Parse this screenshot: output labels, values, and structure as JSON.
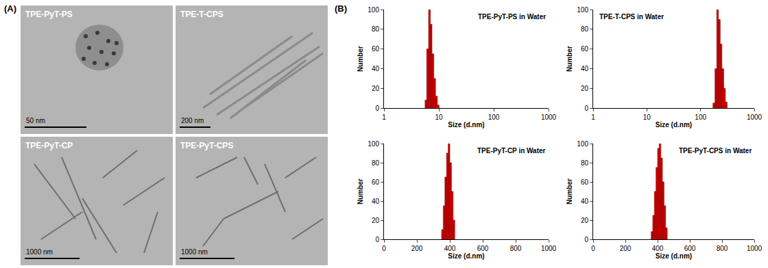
{
  "figure_labels": [
    "(A)",
    "(B)"
  ],
  "images": [
    {
      "label": "TPE-PyT-PS",
      "scale_bar": "50 nm"
    },
    {
      "label": "TPE-T-CPS",
      "scale_bar": "200 nm"
    },
    {
      "label": "TPE-PyT-CP",
      "scale_bar": "1000 nm"
    },
    {
      "label": "TPE-PyT-CPS",
      "scale_bar": "1000 nm"
    }
  ],
  "chart_data": [
    {
      "type": "histogram",
      "title": "TPE-PyT-PS in Water",
      "x_label": "Size (d.nm)",
      "y_label": "Number",
      "log": "x",
      "xlim": [
        1,
        1000
      ],
      "xticks": [
        1,
        10,
        100,
        1000
      ],
      "ylim": [
        0,
        100
      ],
      "yticks": [
        0,
        20,
        40,
        60,
        80,
        100
      ],
      "bins": [
        5.6,
        6.0,
        6.5,
        7.0,
        7.5,
        8.1,
        8.7,
        9.4,
        10.1
      ],
      "counts": [
        8,
        60,
        100,
        85,
        55,
        30,
        12,
        3
      ],
      "color": "#e00000"
    },
    {
      "type": "histogram",
      "title": "TPE-T-CPS in Water",
      "x_label": "Size (d.nm)",
      "y_label": "Number",
      "log": "x",
      "xlim": [
        1,
        1000
      ],
      "xticks": [
        1,
        10,
        100,
        1000
      ],
      "ylim": [
        0,
        100
      ],
      "yticks": [
        0,
        20,
        40,
        60,
        80,
        100
      ],
      "bins": [
        170,
        185,
        200,
        215,
        232,
        250,
        270,
        290,
        312
      ],
      "counts": [
        5,
        40,
        100,
        90,
        65,
        40,
        20,
        6
      ],
      "color": "#e00000"
    },
    {
      "type": "histogram",
      "title": "TPE-PyT-CP in Water",
      "x_label": "Size (d.nm)",
      "y_label": "Number",
      "xlim": [
        0,
        1000
      ],
      "xticks": [
        0,
        200,
        400,
        600,
        800,
        1000
      ],
      "ylim": [
        0,
        100
      ],
      "yticks": [
        0,
        20,
        40,
        60,
        80,
        100
      ],
      "bins": [
        350,
        360,
        370,
        380,
        390,
        400,
        410,
        420,
        430
      ],
      "counts": [
        10,
        35,
        65,
        90,
        100,
        80,
        50,
        20
      ],
      "color": "#e00000"
    },
    {
      "type": "histogram",
      "title": "TPE-PyT-CPS in Water",
      "x_label": "Size (d.nm)",
      "y_label": "Number",
      "xlim": [
        0,
        1000
      ],
      "xticks": [
        0,
        200,
        400,
        600,
        800,
        1000
      ],
      "ylim": [
        0,
        100
      ],
      "yticks": [
        0,
        20,
        40,
        60,
        80,
        100
      ],
      "bins": [
        360,
        370,
        380,
        390,
        400,
        410,
        420,
        430,
        440,
        450,
        460
      ],
      "counts": [
        8,
        25,
        50,
        75,
        95,
        100,
        85,
        60,
        35,
        12
      ],
      "color": "#e00000"
    }
  ]
}
